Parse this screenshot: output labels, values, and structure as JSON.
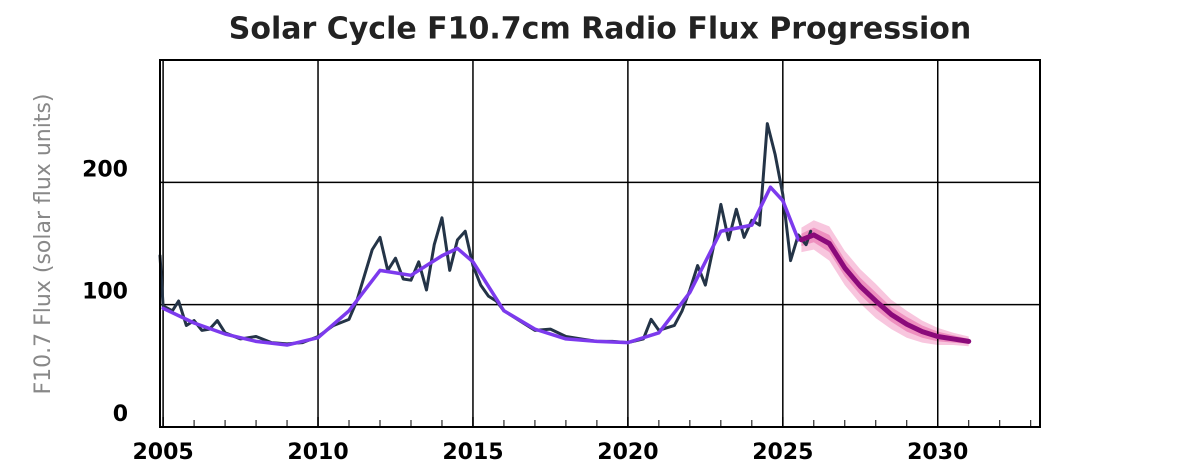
{
  "chart_data": {
    "type": "line",
    "title": "Solar Cycle F10.7cm Radio Flux Progression",
    "y_label": "F10.7 Flux (solar flux units)",
    "xlim": [
      2004.9,
      2033.3
    ],
    "ylim": [
      0,
      300
    ],
    "xticks": [
      2005,
      2010,
      2015,
      2020,
      2025,
      2030
    ],
    "xticks_minor": [
      2006,
      2007,
      2008,
      2009,
      2011,
      2012,
      2013,
      2014,
      2016,
      2017,
      2018,
      2019,
      2021,
      2022,
      2023,
      2024,
      2026,
      2027,
      2028,
      2029,
      2031,
      2032,
      2033
    ],
    "yticks": [
      0,
      100,
      200
    ],
    "grid": true,
    "bands": [
      {
        "color": "#f7bcd8",
        "x": [
          2025.6,
          2026,
          2026.5,
          2027,
          2027.5,
          2028,
          2028.5,
          2029,
          2029.5,
          2030,
          2030.5,
          2031
        ],
        "lower": [
          143,
          145,
          136,
          116,
          101,
          89,
          80,
          73,
          69,
          67,
          67,
          66
        ],
        "upper": [
          163,
          169,
          164,
          144,
          129,
          117,
          104,
          95,
          87,
          81,
          77,
          74
        ]
      },
      {
        "color": "#ec86ba",
        "x": [
          2025.6,
          2026,
          2026.5,
          2027,
          2027.5,
          2028,
          2028.5,
          2029,
          2029.5,
          2030,
          2030.5,
          2031
        ],
        "lower": [
          148,
          151,
          143,
          123,
          108,
          96,
          86,
          78,
          73,
          70,
          69,
          68
        ],
        "upper": [
          158,
          163,
          157,
          137,
          122,
          110,
          98,
          90,
          83,
          78,
          75,
          72
        ]
      }
    ],
    "series": [
      {
        "color": "#243447",
        "width": 3,
        "x": [
          2004.9,
          2005.0,
          2005.3,
          2005.5,
          2005.75,
          2006.0,
          2006.25,
          2006.5,
          2006.75,
          2007.0,
          2007.5,
          2008.0,
          2008.5,
          2009.0,
          2009.5,
          2010.0,
          2010.5,
          2011.0,
          2011.25,
          2011.5,
          2011.75,
          2012.0,
          2012.25,
          2012.5,
          2012.75,
          2013.0,
          2013.25,
          2013.5,
          2013.75,
          2014.0,
          2014.25,
          2014.5,
          2014.75,
          2015.0,
          2015.25,
          2015.5,
          2015.75,
          2016.0,
          2016.5,
          2017.0,
          2017.5,
          2018.0,
          2018.5,
          2019.0,
          2019.5,
          2020.0,
          2020.5,
          2020.75,
          2021.0,
          2021.5,
          2021.75,
          2022.0,
          2022.25,
          2022.5,
          2022.75,
          2023.0,
          2023.25,
          2023.5,
          2023.75,
          2024.0,
          2024.25,
          2024.5,
          2024.75,
          2025.0,
          2025.25,
          2025.5,
          2025.75,
          2025.9
        ],
        "values": [
          140,
          99,
          95,
          103,
          83,
          87,
          79,
          80,
          87,
          77,
          72,
          74,
          69,
          68,
          69,
          74,
          83,
          88,
          103,
          124,
          145,
          155,
          128,
          138,
          121,
          120,
          135,
          112,
          149,
          171,
          128,
          153,
          160,
          132,
          116,
          107,
          103,
          95,
          87,
          79,
          80,
          74,
          72,
          70,
          70,
          69,
          72,
          88,
          79,
          83,
          95,
          112,
          132,
          116,
          146,
          182,
          153,
          178,
          155,
          169,
          165,
          248,
          223,
          190,
          136,
          157,
          149,
          160
        ]
      },
      {
        "color": "#7c3aed",
        "width": 3.5,
        "x": [
          2005.0,
          2006.0,
          2007.0,
          2008.0,
          2009.0,
          2010.0,
          2011.0,
          2012.0,
          2013.0,
          2014.0,
          2014.5,
          2015.0,
          2016.0,
          2017.0,
          2018.0,
          2019.0,
          2020.0,
          2021.0,
          2022.0,
          2023.0,
          2024.0,
          2024.6,
          2025.0,
          2025.5
        ],
        "values": [
          97,
          85,
          76,
          70,
          67,
          73,
          95,
          128,
          124,
          140,
          146,
          135,
          95,
          80,
          72,
          70,
          69,
          77,
          110,
          160,
          165,
          196,
          185,
          153
        ]
      },
      {
        "color": "#8b0a7a",
        "width": 5,
        "x": [
          2025.6,
          2026,
          2026.5,
          2027,
          2027.5,
          2028,
          2028.5,
          2029,
          2029.5,
          2030,
          2030.5,
          2031
        ],
        "values": [
          153,
          157,
          150,
          130,
          115,
          103,
          92,
          84,
          78,
          74,
          72,
          70
        ]
      }
    ]
  }
}
